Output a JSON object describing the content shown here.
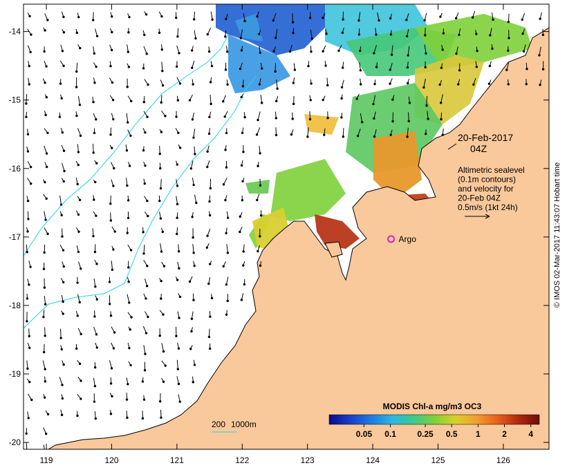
{
  "map": {
    "lon_range": [
      118.65,
      126.7
    ],
    "lat_range": [
      -20.1,
      -13.6
    ],
    "lon_ticks": [
      119,
      120,
      121,
      122,
      123,
      124,
      125,
      126
    ],
    "lat_ticks": [
      -14,
      -15,
      -16,
      -17,
      -18,
      -19,
      -20
    ],
    "colors": {
      "land": "#f9c89b",
      "ocean": "#ffffff",
      "contour": "#22d3e6",
      "coast": "#000000",
      "argo_marker": "#e01fbf"
    }
  },
  "annotations": {
    "date_line1": "20-Feb-2017",
    "date_line2": "04Z",
    "info_lines": [
      "Altimetric sealevel",
      "(0.1m contours)",
      "and velocity for",
      "20-Feb 04Z",
      "0.5m/s (1kt 24h)"
    ],
    "argo_label": "Argo",
    "argo_lon": 124.28,
    "argo_lat": -17.03
  },
  "depth_scale": {
    "label_a": "200",
    "label_b": "1000m"
  },
  "colorbar": {
    "title": "MODIS Chl-a mg/m3 OC3",
    "tick_labels": [
      "0.05",
      "0.1",
      "0.25",
      "0.5",
      "1",
      "2",
      "4"
    ],
    "tick_values": [
      0.05,
      0.1,
      0.25,
      0.5,
      1,
      2,
      4
    ],
    "range": [
      0.02,
      5
    ],
    "scale": "log",
    "colors": [
      "#0a0a8c",
      "#1a3fc8",
      "#1f7ae0",
      "#2cb6e0",
      "#3cc98a",
      "#7ed03a",
      "#d8d02a",
      "#f0a030",
      "#e8601c",
      "#b02a10",
      "#6e0c08"
    ]
  },
  "credit": "© IMOS 02-Mar-2017 11:43:07 Hobart time"
}
